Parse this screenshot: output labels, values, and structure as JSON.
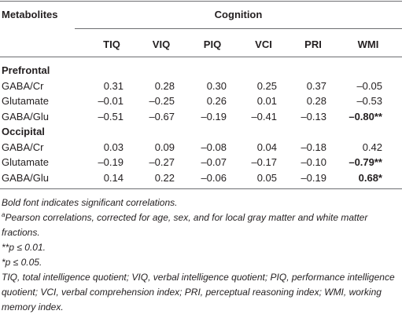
{
  "header": {
    "row_label": "Metabolites",
    "group": "Cognition",
    "columns": [
      "TIQ",
      "VIQ",
      "PIQ",
      "VCI",
      "PRI",
      "WMI"
    ]
  },
  "sections": [
    {
      "title": "Prefrontal",
      "rows": [
        {
          "label": "GABA/Cr",
          "cells": [
            "0.31",
            "0.28",
            "0.30",
            "0.25",
            "0.37",
            "–0.05"
          ]
        },
        {
          "label": "Glutamate",
          "cells": [
            "–0.01",
            "–0.25",
            "0.26",
            "0.01",
            "0.28",
            "–0.53"
          ]
        },
        {
          "label": "GABA/Glu",
          "cells": [
            "–0.51",
            "–0.67",
            "–0.19",
            "–0.41",
            "–0.13",
            {
              "text": "–0.80**",
              "bold": true
            }
          ]
        }
      ]
    },
    {
      "title": "Occipital",
      "rows": [
        {
          "label": "GABA/Cr",
          "cells": [
            "0.03",
            "0.09",
            "–0.08",
            "0.04",
            "–0.18",
            "0.42"
          ]
        },
        {
          "label": "Glutamate",
          "cells": [
            "–0.19",
            "–0.27",
            "–0.07",
            "–0.17",
            "–0.10",
            {
              "text": "–0.79**",
              "bold": true
            }
          ]
        },
        {
          "label": "GABA/Glu",
          "cells": [
            "0.14",
            "0.22",
            "–0.06",
            "0.05",
            "–0.19",
            {
              "text": "0.68*",
              "bold": true
            }
          ]
        }
      ]
    }
  ],
  "notes": [
    {
      "text": "Bold font indicates significant correlations."
    },
    {
      "marker": "a",
      "text": "Pearson correlations, corrected for age, sex, and for local gray matter and white matter fractions."
    },
    {
      "text": "**p ≤ 0.01."
    },
    {
      "text": "*p ≤ 0.05."
    },
    {
      "text": "TIQ, total intelligence quotient; VIQ, verbal intelligence quotient; PIQ, performance intelligence quotient; VCI, verbal comprehension index; PRI, perceptual reasoning index; WMI, working memory index."
    }
  ]
}
